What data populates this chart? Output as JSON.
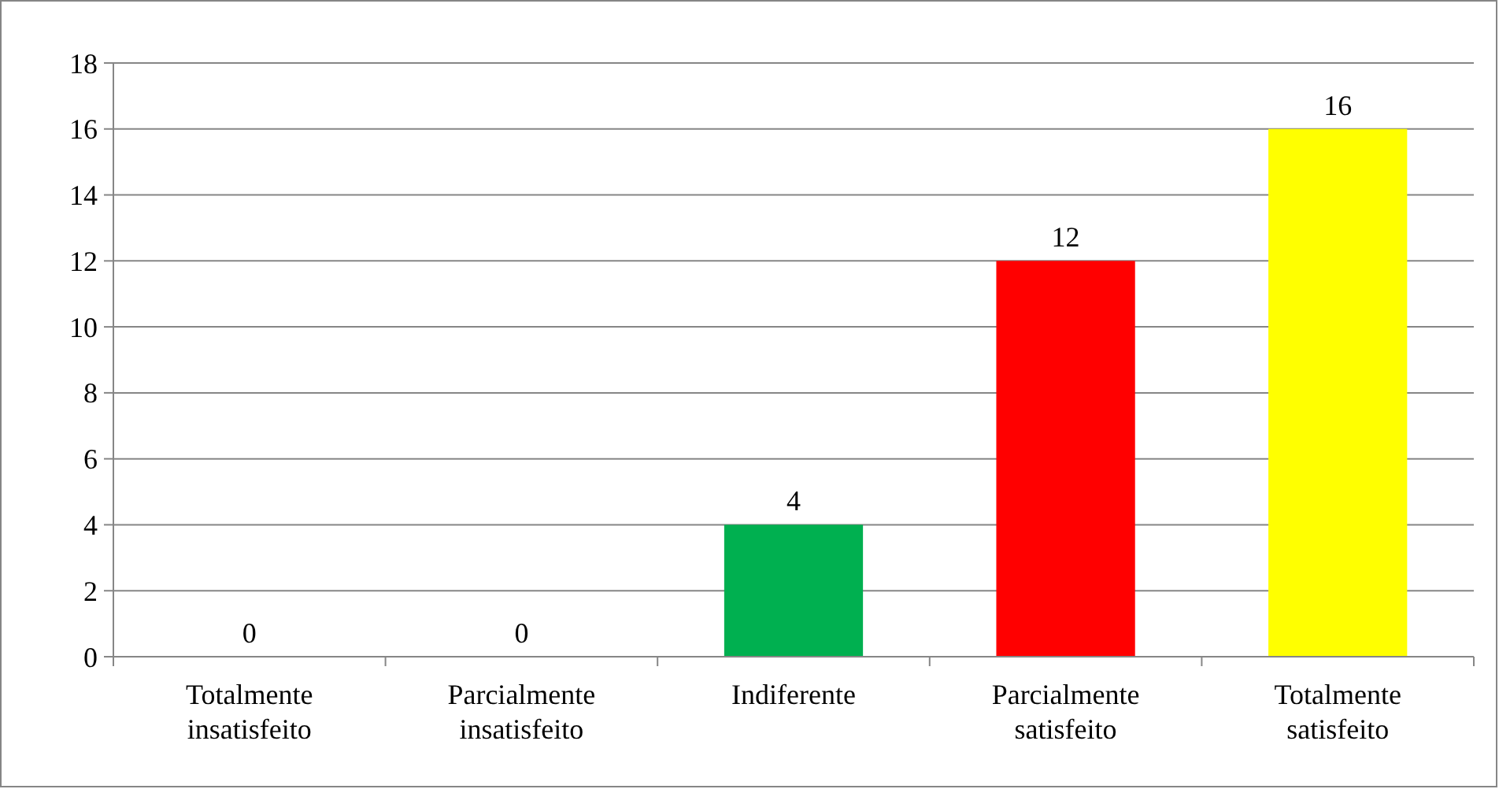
{
  "chart_data": {
    "type": "bar",
    "categories": [
      "Totalmente insatisfeito",
      "Parcialmente insatisfeito",
      "Indiferente",
      "Parcialmente satisfeito",
      "Totalmente satisfeito"
    ],
    "values": [
      0,
      0,
      4,
      12,
      16
    ],
    "colors": [
      "#4472c4",
      "#4472c4",
      "#00b050",
      "#ff0000",
      "#ffff00"
    ],
    "ylim": [
      0,
      18
    ],
    "yticks": [
      0,
      2,
      4,
      6,
      8,
      10,
      12,
      14,
      16,
      18
    ],
    "grid": "y",
    "data_labels": true
  }
}
